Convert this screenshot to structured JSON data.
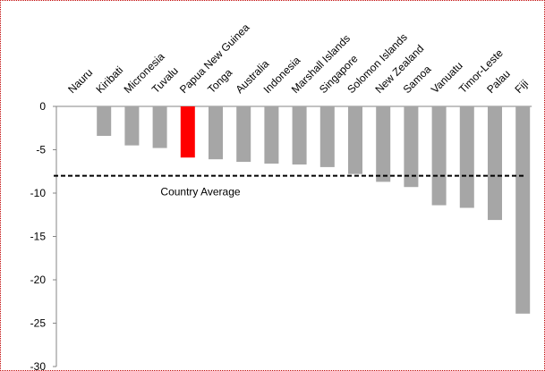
{
  "chart_data": {
    "type": "bar",
    "categories": [
      "Nauru",
      "Kiribati",
      "Micronesia",
      "Tuvalu",
      "Papua New Guinea",
      "Tonga",
      "Australia",
      "Indonesia",
      "Marshall Islands",
      "Singapore",
      "Solomon Islands",
      "New Zealand",
      "Samoa",
      "Vanuatu",
      "Timor-Leste",
      "Palau",
      "Fiji"
    ],
    "values": [
      0,
      -3.4,
      -4.5,
      -4.8,
      -5.9,
      -6.1,
      -6.4,
      -6.6,
      -6.7,
      -7.0,
      -7.8,
      -8.7,
      -9.3,
      -11.4,
      -11.7,
      -13.1,
      -23.9
    ],
    "highlight": "Papua New Guinea",
    "colors": {
      "bar": "#a6a6a6",
      "highlight": "#ff0000",
      "average_line": "#000000"
    },
    "reference_line": {
      "label": "Country Average",
      "value": -8.0,
      "style": "dashed"
    },
    "ylim": [
      -30,
      0
    ],
    "yticks": [
      0,
      -5,
      -10,
      -15,
      -20,
      -25,
      -30
    ],
    "grid": false,
    "legend": "none",
    "title": "",
    "xlabel": "",
    "ylabel": ""
  }
}
